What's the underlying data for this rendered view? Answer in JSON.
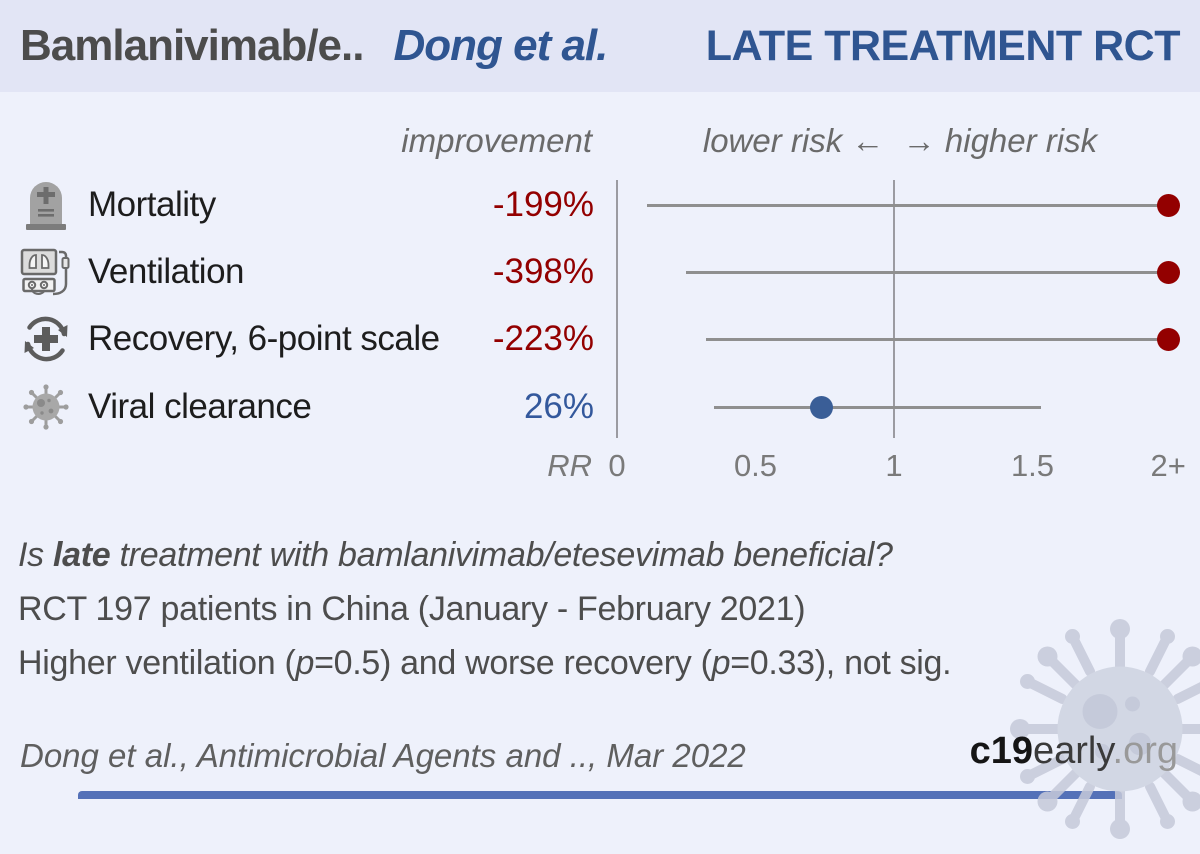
{
  "header": {
    "treatment": "Bamlanivimab/e..",
    "author": "Dong et al.",
    "stage": "LATE TREATMENT RCT"
  },
  "columns": {
    "improvement": "improvement",
    "risk_scale": "lower risk ←  → higher risk"
  },
  "chart_data": {
    "type": "forest",
    "x_axis": {
      "label": "RR",
      "ticks": [
        "0",
        "0.5",
        "1",
        "1.5",
        "2+"
      ],
      "tick_rr": [
        0,
        0.5,
        1,
        1.5,
        1.99
      ],
      "range": [
        0,
        2
      ],
      "reference_lines_rr": [
        0,
        1
      ]
    },
    "outcomes": [
      {
        "label": "Mortality",
        "icon": "tombstone-icon",
        "improvement": "-199%",
        "rr": 2.99,
        "ci_low": 0.11,
        "ci_high": null,
        "direction": "harm",
        "clipped": true
      },
      {
        "label": "Ventilation",
        "icon": "ventilator-icon",
        "improvement": "-398%",
        "rr": 4.98,
        "ci_low": 0.25,
        "ci_high": null,
        "direction": "harm",
        "clipped": true
      },
      {
        "label": "Recovery, 6-point scale",
        "icon": "recovery-icon",
        "improvement": "-223%",
        "rr": 3.23,
        "ci_low": 0.32,
        "ci_high": null,
        "direction": "harm",
        "clipped": true
      },
      {
        "label": "Viral clearance",
        "icon": "virus-icon",
        "improvement": "26%",
        "rr": 0.74,
        "ci_low": 0.35,
        "ci_high": 1.53,
        "direction": "benefit",
        "clipped": false
      }
    ]
  },
  "summary": {
    "question_pre": "Is ",
    "question_bold": "late",
    "question_rest": " treatment with bamlanivimab/etesevimab beneficial?",
    "study_line": "RCT 197 patients in China (January - February 2021)",
    "result_seg1": "Higher ventilation (",
    "result_p1": "p",
    "result_seg2": "=0.5) and worse recovery (",
    "result_p2": "p",
    "result_seg3": "=0.33), not sig."
  },
  "footer": {
    "citation": "Dong et al., Antimicrobial Agents and .., Mar 2022",
    "logo_c19": "c19",
    "logo_early": "early",
    "logo_org": ".org"
  },
  "colors": {
    "harm": "#930000",
    "benefit": "#33589c",
    "accent_blue": "#2f5591",
    "header_bg": "#e2e5f5",
    "page_bg": "#eef1fb"
  }
}
